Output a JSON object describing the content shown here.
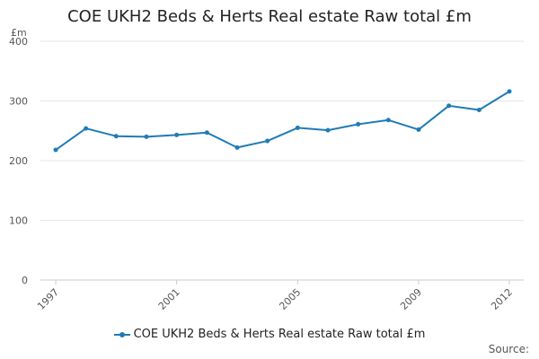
{
  "chart_data": {
    "type": "line",
    "title": "COE UKH2 Beds & Herts Real estate Raw total £m",
    "ylabel": "£m",
    "xlabel": "",
    "x": [
      1997,
      1998,
      1999,
      2000,
      2001,
      2002,
      2003,
      2004,
      2005,
      2006,
      2007,
      2008,
      2009,
      2010,
      2011,
      2012
    ],
    "x_tick_labels": [
      "1997",
      "2001",
      "2005",
      "2009",
      "2012"
    ],
    "y_ticks": [
      0,
      100,
      200,
      300,
      400
    ],
    "ylim": [
      0,
      400
    ],
    "grid": true,
    "legend_position": "bottom",
    "series": [
      {
        "name": "COE UKH2 Beds & Herts Real estate Raw total £m",
        "color": "#1f7bb6",
        "values": [
          218,
          254,
          241,
          240,
          243,
          247,
          222,
          233,
          255,
          251,
          261,
          268,
          252,
          292,
          285,
          316
        ]
      }
    ]
  },
  "source_label": "Source:"
}
